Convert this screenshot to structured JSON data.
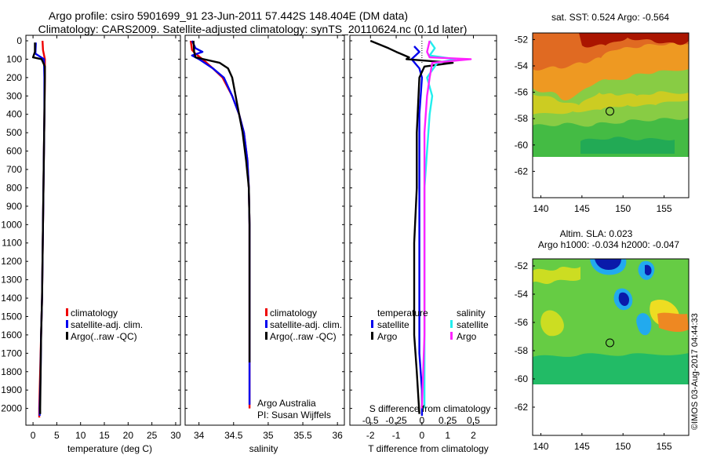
{
  "title": {
    "line1": "Argo profile: csiro 5901699_91 23-Jun-2011 57.442S 148.404E (DM data)",
    "line2": "Climatology: CARS2009. Satellite-adjusted climatology: synTS_20110624.nc (0.1d later)"
  },
  "colors": {
    "climatology": "#ee0000",
    "satellite": "#0000ee",
    "argo": "#000000",
    "argo_salinity": "#ff22ff",
    "satellite_salinity": "#22eeee"
  },
  "chart_data": [
    {
      "type": "line",
      "name": "temperature panel",
      "xlabel": "temperature (deg C)",
      "xlim": [
        -1.5,
        31
      ],
      "xticks": [
        0,
        5,
        10,
        15,
        20,
        25,
        30
      ],
      "ylim": [
        2070,
        0
      ],
      "yticks": [
        0,
        100,
        200,
        300,
        400,
        500,
        600,
        700,
        800,
        900,
        1000,
        1100,
        1200,
        1300,
        1400,
        1500,
        1600,
        1700,
        1800,
        1900,
        2000
      ],
      "legend": [
        "climatology",
        "satellite-adj. clim.",
        "Argo(..raw -QC)"
      ],
      "legend_position": "lower-center",
      "series": [
        {
          "name": "climatology",
          "color": "#ee0000",
          "x": [
            2.0,
            2.1,
            2.5,
            2.5,
            2.4,
            2.3,
            2.2,
            2.1,
            2.0,
            1.9,
            1.8,
            1.7,
            1.5,
            1.4,
            1.3,
            1.3
          ],
          "y": [
            0,
            50,
            100,
            200,
            400,
            600,
            800,
            1000,
            1200,
            1400,
            1500,
            1600,
            1800,
            1900,
            2000,
            2050
          ]
        },
        {
          "name": "satellite-adj. clim.",
          "color": "#0000ee",
          "x": [
            0.6,
            0.5,
            2.3,
            2.4,
            2.4,
            2.3,
            2.2,
            2.1,
            2.0,
            1.9,
            1.8,
            1.7,
            1.6,
            1.5,
            1.4,
            1.4
          ],
          "y": [
            10,
            70,
            100,
            200,
            400,
            600,
            800,
            1000,
            1200,
            1400,
            1500,
            1600,
            1800,
            1900,
            2000,
            2040
          ]
        },
        {
          "name": "Argo",
          "color": "#000000",
          "x": [
            0.4,
            0.4,
            0.0,
            1.8,
            2.5,
            2.5,
            2.4,
            2.3,
            2.2,
            2.1,
            2.0,
            1.9,
            1.8,
            1.7,
            1.6,
            1.5,
            1.5
          ],
          "y": [
            10,
            60,
            90,
            100,
            140,
            200,
            400,
            600,
            800,
            1000,
            1200,
            1400,
            1500,
            1600,
            1800,
            2000,
            2030
          ]
        }
      ]
    },
    {
      "type": "line",
      "name": "salinity panel",
      "xlabel": "salinity",
      "xlim": [
        33.8,
        36.1
      ],
      "xticks": [
        34,
        34.5,
        35,
        35.5,
        36
      ],
      "ylim": [
        2070,
        0
      ],
      "legend": [
        "climatology",
        "satellite-adj. clim.",
        "Argo(..raw -QC)"
      ],
      "legend_position": "lower-center",
      "annotation": [
        "Argo Australia",
        "PI: Susan Wijffels"
      ],
      "series": [
        {
          "name": "climatology",
          "color": "#ee0000",
          "x": [
            33.88,
            33.9,
            33.95,
            34.05,
            34.2,
            34.34,
            34.48,
            34.58,
            34.65,
            34.7,
            34.72,
            34.73,
            34.73,
            34.73,
            34.73,
            34.73
          ],
          "y": [
            0,
            50,
            70,
            100,
            150,
            200,
            300,
            400,
            500,
            650,
            800,
            1000,
            1200,
            1500,
            1800,
            2000
          ]
        },
        {
          "name": "satellite-adj. clim.",
          "color": "#0000ee",
          "x": [
            33.9,
            33.95,
            34.05,
            33.9,
            34.0,
            34.2,
            34.36,
            34.48,
            34.58,
            34.65,
            34.7,
            34.72,
            34.73,
            34.73,
            34.73,
            34.73,
            34.73
          ],
          "y": [
            0,
            40,
            60,
            80,
            100,
            150,
            200,
            300,
            400,
            500,
            650,
            800,
            1000,
            1200,
            1500,
            1800,
            1980
          ]
        },
        {
          "name": "Argo",
          "color": "#000000",
          "x": [
            33.92,
            33.93,
            33.95,
            34.3,
            34.42,
            34.48,
            34.53,
            34.58,
            34.63,
            34.68,
            34.72,
            34.73,
            34.73,
            34.73,
            34.73
          ],
          "y": [
            0,
            60,
            90,
            120,
            150,
            200,
            300,
            400,
            500,
            650,
            800,
            1000,
            1200,
            1500,
            1750
          ]
        }
      ]
    },
    {
      "type": "line",
      "name": "difference panel",
      "xlabel": "T difference from climatology",
      "xlabel_top": "S difference from climatology",
      "xlim": [
        -2.8,
        2.9
      ],
      "xticks": [
        -2,
        -1,
        0,
        1,
        2
      ],
      "xticks_s": [
        "-0.5",
        "-0.25",
        "0",
        "0.25",
        "0.5"
      ],
      "ylim": [
        2070,
        0
      ],
      "legend_temperature": {
        "heading": "temperature",
        "items": [
          "satellite",
          "Argo"
        ]
      },
      "legend_salinity": {
        "heading": "salinity",
        "items": [
          "satellite",
          "Argo"
        ]
      },
      "series": [
        {
          "name": "temperature satellite",
          "color": "#0000ee",
          "x": [
            -0.3,
            -0.1,
            -0.4,
            -0.1,
            0.0,
            -0.1,
            -0.1,
            -0.1,
            -0.1,
            -0.1,
            0.0,
            0.0
          ],
          "y": [
            30,
            60,
            100,
            150,
            200,
            400,
            800,
            1200,
            1500,
            1700,
            1900,
            2040
          ]
        },
        {
          "name": "temperature Argo",
          "color": "#000000",
          "x": [
            -2.0,
            -1.3,
            -1.0,
            -0.5,
            -0.6,
            1.2,
            0.1,
            -0.1,
            -0.2,
            -0.2,
            -0.3,
            -0.3,
            -0.3,
            -0.2,
            -0.1
          ],
          "y": [
            0,
            40,
            60,
            90,
            100,
            120,
            140,
            200,
            500,
            800,
            1100,
            1400,
            1600,
            1800,
            2030
          ]
        },
        {
          "name": "salinity satellite",
          "color": "#22eeee",
          "x": [
            0.3,
            0.5,
            0.3,
            1.3,
            0.6,
            0.2,
            0.4,
            0.3,
            0.2,
            0.1,
            0.1,
            0.1,
            0.1
          ],
          "y": [
            0,
            40,
            80,
            100,
            120,
            200,
            300,
            400,
            600,
            800,
            1200,
            1600,
            2000
          ]
        },
        {
          "name": "salinity Argo",
          "color": "#ff22ff",
          "x": [
            0.3,
            0.2,
            0.3,
            1.9,
            0.4,
            0.3,
            0.2,
            0.1,
            0.1,
            0.1,
            0.1,
            0.0
          ],
          "y": [
            0,
            60,
            90,
            100,
            120,
            200,
            300,
            500,
            800,
            1200,
            1600,
            2000
          ]
        }
      ]
    },
    {
      "type": "heatmap",
      "name": "SST map",
      "title": "sat. SST: 0.524  Argo: -0.564",
      "xlim": [
        139,
        158
      ],
      "ylim": [
        -64,
        -51.5
      ],
      "xticks": [
        140,
        145,
        150,
        155
      ],
      "yticks": [
        -52,
        -54,
        -56,
        -58,
        -60,
        -62
      ],
      "marker": {
        "lon": 148.404,
        "lat": -57.442
      },
      "data_extent_lat": [
        -60,
        -51.5
      ]
    },
    {
      "type": "heatmap",
      "name": "SLA map",
      "title_line1": "Altim. SLA: 0.023",
      "title_line2": "Argo h1000: -0.034  h2000: -0.047",
      "xlim": [
        139,
        158
      ],
      "ylim": [
        -64,
        -51.5
      ],
      "xticks": [
        140,
        145,
        150,
        155
      ],
      "yticks": [
        -52,
        -54,
        -56,
        -58,
        -60,
        -62
      ],
      "marker": {
        "lon": 148.404,
        "lat": -57.442
      },
      "data_extent_lat": [
        -60,
        -51.5
      ]
    }
  ],
  "credit": "©IMOS 03-Aug-2017 04:44:33"
}
